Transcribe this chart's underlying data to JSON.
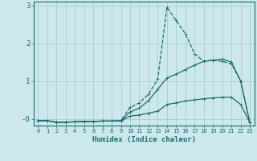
{
  "xlabel": "Humidex (Indice chaleur)",
  "ylabel": "",
  "xlim": [
    -0.5,
    23.5
  ],
  "ylim": [
    -0.18,
    3.1
  ],
  "yticks": [
    0,
    1,
    2,
    3
  ],
  "ytick_labels": [
    "-0",
    "1",
    "2",
    "3"
  ],
  "xticks": [
    0,
    1,
    2,
    3,
    4,
    5,
    6,
    7,
    8,
    9,
    10,
    11,
    12,
    13,
    14,
    15,
    16,
    17,
    18,
    19,
    20,
    21,
    22,
    23
  ],
  "background_color": "#cde8ec",
  "grid_color": "#a8cdd2",
  "line_color": "#1a6b6b",
  "x": [
    0,
    1,
    2,
    3,
    4,
    5,
    6,
    7,
    8,
    9,
    10,
    11,
    12,
    13,
    14,
    15,
    16,
    17,
    18,
    19,
    20,
    21,
    22,
    23
  ],
  "line1_y": [
    -0.05,
    -0.05,
    -0.09,
    -0.09,
    -0.08,
    -0.07,
    -0.07,
    -0.06,
    -0.06,
    -0.05,
    0.3,
    0.42,
    0.65,
    1.05,
    2.95,
    2.6,
    2.25,
    1.72,
    1.52,
    1.55,
    1.52,
    1.45,
    1.0,
    -0.1
  ],
  "line2_y": [
    -0.05,
    -0.05,
    -0.09,
    -0.09,
    -0.08,
    -0.07,
    -0.07,
    -0.06,
    -0.06,
    -0.05,
    0.18,
    0.28,
    0.48,
    0.78,
    1.08,
    1.18,
    1.3,
    1.42,
    1.52,
    1.55,
    1.58,
    1.5,
    1.0,
    -0.1
  ],
  "line3_y": [
    -0.05,
    -0.05,
    -0.09,
    -0.09,
    -0.08,
    -0.07,
    -0.07,
    -0.06,
    -0.06,
    -0.06,
    0.07,
    0.1,
    0.15,
    0.2,
    0.38,
    0.42,
    0.47,
    0.5,
    0.53,
    0.55,
    0.57,
    0.57,
    0.38,
    -0.1
  ]
}
